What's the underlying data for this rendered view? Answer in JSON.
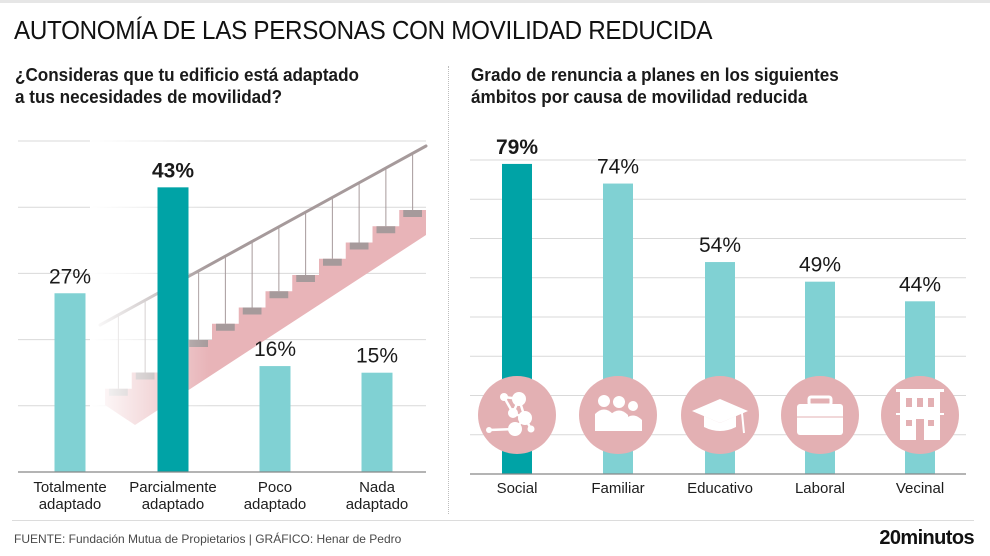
{
  "header": {
    "title": "AUTONOMÍA DE LAS PERSONAS CON MOVILIDAD REDUCIDA"
  },
  "colors": {
    "highlight_bar": "#00a3a6",
    "bar": "#80d1d3",
    "icon_circle": "#e3b0b3",
    "stair_pink": "#e8b4b8",
    "stair_gray": "#a69a9b",
    "grid": "#d9d9d9",
    "axis": "#888888"
  },
  "chart_data": [
    {
      "type": "bar",
      "title": "¿Consideras que tu edificio está adaptado\na tus necesidades de movilidad?",
      "categories": [
        "Totalmente adaptado",
        "Parcialmente adaptado",
        "Poco adaptado",
        "Nada adaptado"
      ],
      "category_lines": [
        [
          "Totalmente",
          "adaptado"
        ],
        [
          "Parcialmente",
          "adaptado"
        ],
        [
          "Poco",
          "adaptado"
        ],
        [
          "Nada",
          "adaptado"
        ]
      ],
      "values": [
        27,
        43,
        16,
        15
      ],
      "labels": [
        "27%",
        "43%",
        "16%",
        "15%"
      ],
      "highlight_index": 1,
      "unit": "%",
      "xlabel": "",
      "ylabel": "",
      "ylim": [
        0,
        50
      ],
      "grid": true,
      "grid_step": 10,
      "background_illustration": "staircase-with-railing"
    },
    {
      "type": "bar",
      "title": "Grado de renuncia a planes en los siguientes\námbitos por causa de movilidad reducida",
      "categories": [
        "Social",
        "Familiar",
        "Educativo",
        "Laboral",
        "Vecinal"
      ],
      "category_icons": [
        "social-network-icon",
        "family-icon",
        "graduation-cap-icon",
        "briefcase-icon",
        "building-icon"
      ],
      "values": [
        79,
        74,
        54,
        49,
        44
      ],
      "labels": [
        "79%",
        "74%",
        "54%",
        "49%",
        "44%"
      ],
      "highlight_index": 0,
      "unit": "%",
      "xlabel": "",
      "ylabel": "",
      "ylim": [
        0,
        80
      ],
      "grid": true,
      "grid_step": 10
    }
  ],
  "footer": {
    "source": "FUENTE: Fundación Mutua de Propietarios  |  GRÁFICO: Henar de Pedro",
    "logo": "20minutos"
  }
}
